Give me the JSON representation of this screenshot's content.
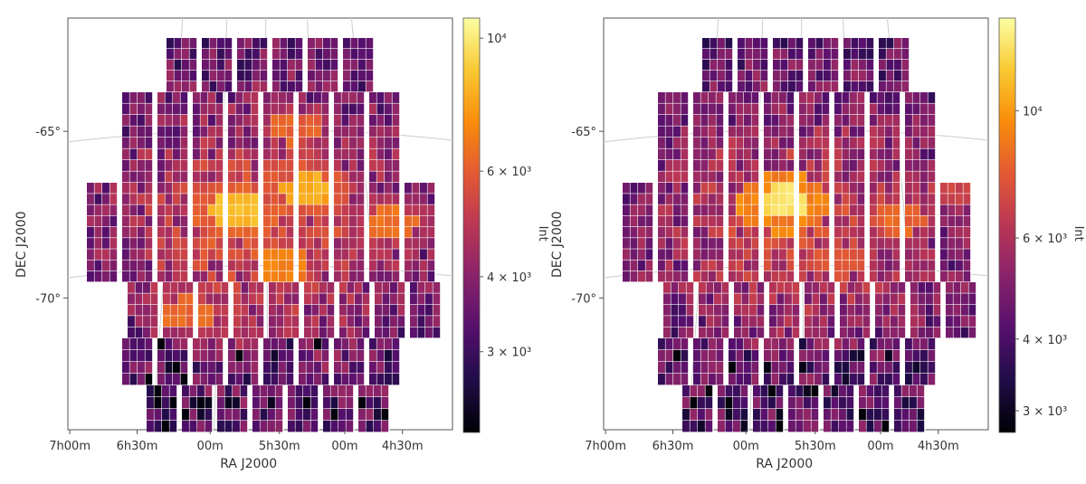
{
  "chart_data": [
    {
      "type": "heatmap",
      "xlabel": "RA J2000",
      "ylabel": "DEC J2000",
      "x_tick_labels": [
        "7h00m",
        "6h30m",
        "00m",
        "5h30m",
        "00m",
        "4h30m"
      ],
      "y_tick_labels": [
        "-65°",
        "-70°"
      ],
      "colorbar_label": "Int",
      "colorbar_ticks": [
        {
          "label": "3 × 10³",
          "value": 3000
        },
        {
          "label": "4 × 10³",
          "value": 4000
        },
        {
          "label": "6 × 10³",
          "value": 6000
        },
        {
          "label": "10⁴",
          "value": 10000
        }
      ],
      "colorbar_range": [
        2200,
        10800
      ],
      "colormap": "inferno",
      "color_scale": "log",
      "grid": true,
      "hot_spots": [
        {
          "col": 4.3,
          "row": 7.3,
          "value": 8800
        },
        {
          "col": 6.1,
          "row": 6.5,
          "value": 8400
        },
        {
          "col": 5.5,
          "row": 9.4,
          "value": 7200
        },
        {
          "col": 8.3,
          "row": 7.8,
          "value": 6800
        },
        {
          "col": 3.0,
          "row": 11.3,
          "value": 6600
        },
        {
          "col": 5.8,
          "row": 4.0,
          "value": 6400
        }
      ]
    },
    {
      "type": "heatmap",
      "xlabel": "RA J2000",
      "ylabel": "DEC J2000",
      "x_tick_labels": [
        "7h00m",
        "6h30m",
        "00m",
        "5h30m",
        "00m",
        "4h30m"
      ],
      "y_tick_labels": [
        "-65°",
        "-70°"
      ],
      "colorbar_label": "Int",
      "colorbar_ticks": [
        {
          "label": "3 × 10³",
          "value": 3000
        },
        {
          "label": "4 × 10³",
          "value": 4000
        },
        {
          "label": "6 × 10³",
          "value": 6000
        },
        {
          "label": "10⁴",
          "value": 10000
        }
      ],
      "colorbar_range": [
        2750,
        14500
      ],
      "colormap": "inferno",
      "color_scale": "log",
      "grid": true,
      "hot_spots": [
        {
          "col": 4.6,
          "row": 7.0,
          "value": 13500
        },
        {
          "col": 7.6,
          "row": 7.6,
          "value": 8600
        },
        {
          "col": 6.0,
          "row": 9.2,
          "value": 7800
        },
        {
          "col": 9.0,
          "row": 6.4,
          "value": 7200
        }
      ]
    }
  ]
}
